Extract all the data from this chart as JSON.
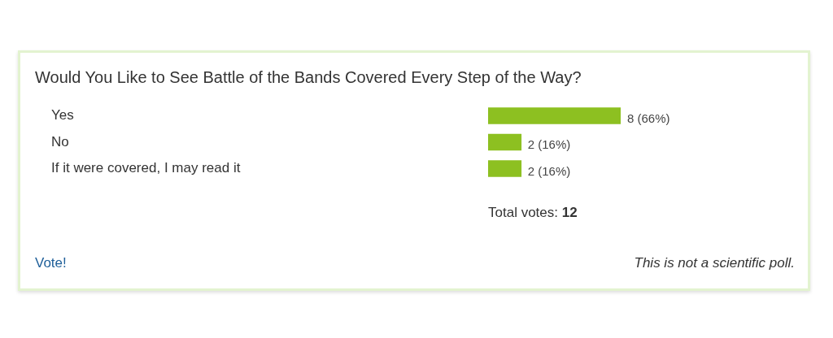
{
  "chart_data": {
    "type": "bar",
    "orientation": "horizontal",
    "title": "Would You Like to See Battle of the Bands Covered Every Step of the Way?",
    "categories": [
      "Yes",
      "No",
      "If it were covered, I may read it"
    ],
    "values": [
      8,
      2,
      2
    ],
    "color": "#8dc021",
    "value_labels": [
      "8 (66%)",
      "2 (16%)",
      "2 (16%)"
    ],
    "annotations": [
      "Total votes: 12",
      "Vote!",
      "This is not a scientific poll."
    ],
    "grid": false,
    "legend": false
  }
}
